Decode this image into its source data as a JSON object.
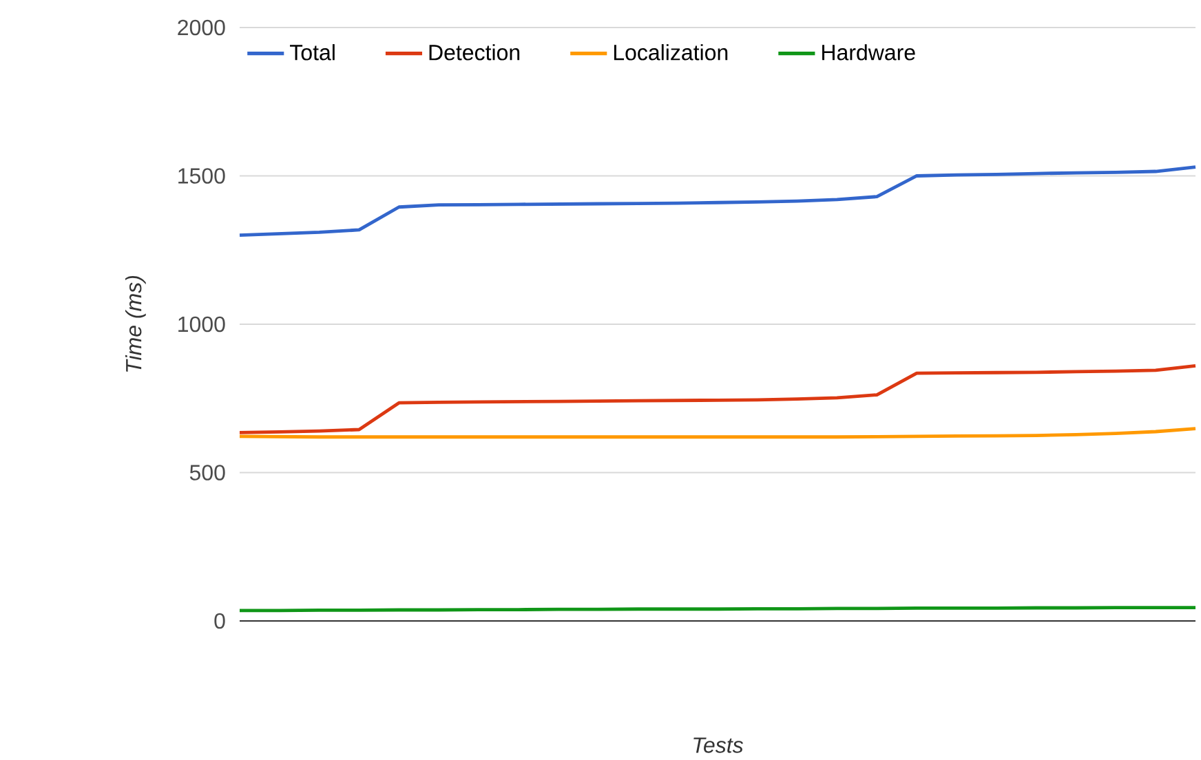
{
  "chart_data": {
    "type": "line",
    "xlabel": "Tests",
    "ylabel": "Time (ms)",
    "categories": [
      null,
      null,
      null,
      null,
      null,
      null,
      null,
      null,
      null,
      null,
      null,
      null,
      null,
      null,
      null,
      null,
      null,
      null,
      null,
      null,
      null,
      null,
      null,
      null,
      null
    ],
    "series": [
      {
        "name": "Total",
        "color": "#3366cc",
        "values": [
          1300,
          1305,
          1310,
          1318,
          1395,
          1402,
          1403,
          1404,
          1405,
          1406,
          1407,
          1408,
          1410,
          1412,
          1415,
          1420,
          1430,
          1500,
          1503,
          1505,
          1508,
          1510,
          1512,
          1515,
          1530
        ]
      },
      {
        "name": "Detection",
        "color": "#dc3912",
        "values": [
          635,
          637,
          640,
          645,
          735,
          737,
          738,
          739,
          740,
          741,
          742,
          743,
          744,
          745,
          748,
          752,
          762,
          835,
          836,
          837,
          838,
          840,
          842,
          845,
          860
        ]
      },
      {
        "name": "Localization",
        "color": "#ff9900",
        "values": [
          622,
          621,
          620,
          620,
          620,
          620,
          620,
          620,
          620,
          620,
          620,
          620,
          620,
          620,
          620,
          620,
          621,
          622,
          623,
          624,
          625,
          628,
          632,
          638,
          648
        ]
      },
      {
        "name": "Hardware",
        "color": "#109618",
        "values": [
          35,
          35,
          36,
          36,
          37,
          37,
          38,
          38,
          39,
          39,
          40,
          40,
          40,
          41,
          41,
          42,
          42,
          43,
          43,
          43,
          44,
          44,
          45,
          45,
          45
        ]
      }
    ],
    "ylim": [
      0,
      2000
    ],
    "yticks": [
      0,
      500,
      1000,
      1500,
      2000
    ],
    "grid": "y",
    "legend": "top left",
    "marker": "none",
    "line_style": "solid"
  }
}
